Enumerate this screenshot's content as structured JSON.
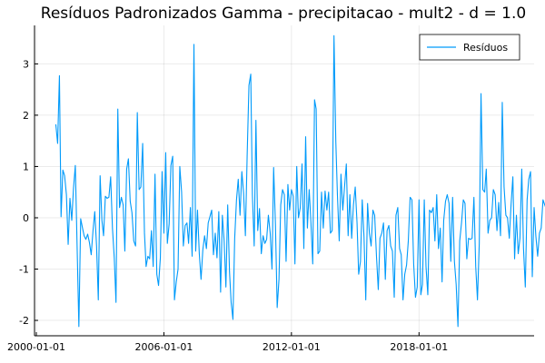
{
  "chart_data": {
    "type": "line",
    "title": "Resíduos Padronizados Gamma - precipitacao - mult2 - d = 1.0",
    "xlabel": "",
    "ylabel": "",
    "grid": true,
    "legend_position": "top-right",
    "x_start": "2000-12",
    "x_step": "1 month",
    "xlim": [
      "1999-12-01",
      "2023-06-01"
    ],
    "ylim": [
      -2.3,
      3.75
    ],
    "x_tick_labels": [
      "2000-01-01",
      "2006-01-01",
      "2012-01-01",
      "2018-01-01"
    ],
    "y_tick_labels": [
      "-2",
      "-1",
      "0",
      "1",
      "2",
      "3"
    ],
    "y_ticks": [
      -2,
      -1,
      0,
      1,
      2,
      3
    ],
    "series": [
      {
        "name": "Resíduos",
        "color": "#009AFA",
        "values": [
          1.82,
          1.45,
          2.77,
          0.02,
          0.93,
          0.82,
          0.45,
          -0.52,
          0.38,
          -0.05,
          0.58,
          1.02,
          -0.52,
          -2.12,
          -0.02,
          -0.18,
          -0.35,
          -0.42,
          -0.32,
          -0.48,
          -0.72,
          -0.25,
          0.12,
          -0.55,
          -1.6,
          0.82,
          -0.05,
          -0.35,
          0.42,
          0.38,
          0.4,
          0.8,
          -0.2,
          -0.78,
          -1.65,
          2.12,
          0.2,
          0.4,
          0.25,
          -0.65,
          0.95,
          1.15,
          0.32,
          0.1,
          -0.45,
          -0.55,
          2.05,
          0.55,
          0.6,
          1.45,
          -0.3,
          -0.95,
          -0.75,
          -0.8,
          -0.25,
          -0.95,
          0.85,
          -1.1,
          -1.32,
          -0.78,
          0.9,
          -0.3,
          1.27,
          -0.5,
          -0.12,
          1.02,
          1.2,
          -1.6,
          -1.25,
          -1.0,
          1.0,
          0.5,
          -0.55,
          -0.15,
          -0.1,
          -0.5,
          0.2,
          -0.75,
          3.38,
          -0.65,
          0.15,
          -0.7,
          -1.2,
          -0.62,
          -0.35,
          -0.6,
          -0.1,
          0.02,
          0.15,
          -0.72,
          -0.3,
          -0.78,
          0.12,
          -1.45,
          0.05,
          -0.45,
          -1.35,
          0.25,
          -1.05,
          -1.65,
          -1.98,
          -0.4,
          0.35,
          0.75,
          0.05,
          0.9,
          0.48,
          -0.35,
          1.2,
          2.58,
          2.8,
          0.45,
          -0.55,
          1.9,
          -0.25,
          0.18,
          -0.7,
          -0.35,
          -0.5,
          -0.42,
          0.05,
          -0.3,
          -1.0,
          0.98,
          -0.12,
          -1.75,
          -1.2,
          0.25,
          0.55,
          0.45,
          -0.85,
          0.65,
          0.15,
          0.55,
          0.42,
          -0.9,
          1.0,
          0.0,
          0.2,
          1.05,
          -0.6,
          1.58,
          -0.2,
          0.55,
          -0.1,
          -0.9,
          2.3,
          2.12,
          -0.7,
          -0.65,
          0.5,
          -0.2,
          0.52,
          0.15,
          0.5,
          -0.3,
          -0.25,
          3.55,
          1.5,
          0.45,
          -0.45,
          0.85,
          0.15,
          0.6,
          1.05,
          -0.35,
          0.45,
          -0.4,
          0.25,
          0.6,
          -0.1,
          -1.1,
          -0.85,
          0.35,
          -0.38,
          -1.6,
          0.28,
          -0.3,
          -0.55,
          0.15,
          0.05,
          -0.75,
          -1.4,
          -0.4,
          -0.3,
          -0.1,
          -1.2,
          -0.25,
          -0.15,
          -0.55,
          -0.65,
          -1.55,
          0.05,
          0.2,
          -0.6,
          -0.72,
          -1.6,
          -1.1,
          -0.92,
          -0.45,
          0.4,
          0.35,
          -0.9,
          -1.55,
          -1.35,
          0.35,
          -1.5,
          -1.3,
          0.35,
          -0.95,
          -1.5,
          0.15,
          0.1,
          0.2,
          -0.45,
          0.45,
          -0.6,
          -0.2,
          -1.25,
          -0.05,
          0.32,
          0.45,
          0.28,
          -0.85,
          0.4,
          -0.85,
          -1.3,
          -2.12,
          -0.45,
          -0.1,
          0.35,
          0.28,
          -0.8,
          -0.4,
          -0.42,
          -0.4,
          0.4,
          -0.95,
          -1.6,
          -0.5,
          2.42,
          0.55,
          0.5,
          0.95,
          -0.3,
          -0.05,
          0.0,
          0.55,
          0.45,
          -0.25,
          0.3,
          -0.35,
          2.25,
          0.6,
          0.05,
          0.0,
          -0.4,
          0.25,
          0.8,
          -0.8,
          0.05,
          -0.7,
          -0.4,
          0.95,
          -0.6,
          -1.35,
          0.35,
          0.75,
          0.9,
          -1.15,
          0.2,
          -0.35,
          -0.75,
          -0.3,
          -0.2,
          0.35,
          0.25,
          0.15,
          -1.1,
          -0.75,
          -0.75,
          -1.1,
          -0.35,
          0.2,
          1.18,
          0.1
        ]
      }
    ]
  }
}
